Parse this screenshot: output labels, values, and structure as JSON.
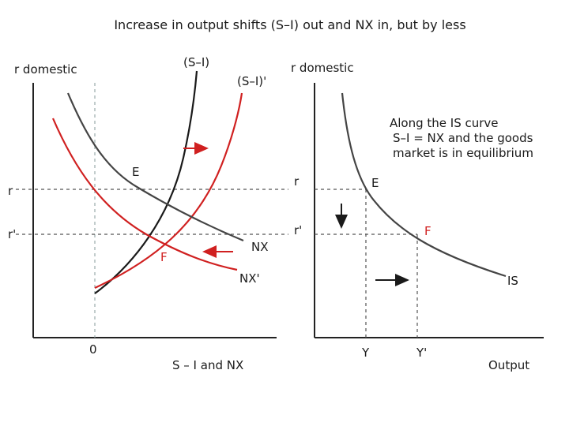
{
  "title": "Increase in output shifts (S–I) out and NX in, but by less",
  "left_panel": {
    "y_axis_label": "r domestic",
    "x_axis_label": "S – I and NX",
    "zero_label": "0",
    "r_label": "r",
    "r_prime_label": "r'",
    "si_label": "(S–I)",
    "si_prime_label": "(S–I)'",
    "nx_label": "NX",
    "nx_prime_label": "NX'",
    "point_e": "E",
    "point_f": "F"
  },
  "right_panel": {
    "y_axis_label": "r domestic",
    "x_axis_label": "Output",
    "r_label": "r",
    "r_prime_label": "r'",
    "y_label": "Y",
    "y_prime_label": "Y'",
    "point_e": "E",
    "point_f": "F",
    "is_label": "IS",
    "note_lines": [
      "Along the IS curve",
      "S–I =  NX and the goods",
      "market is in equilibrium"
    ]
  },
  "colors": {
    "shifted_curves": "#d02020",
    "original_curves": "#1a1a1a"
  }
}
